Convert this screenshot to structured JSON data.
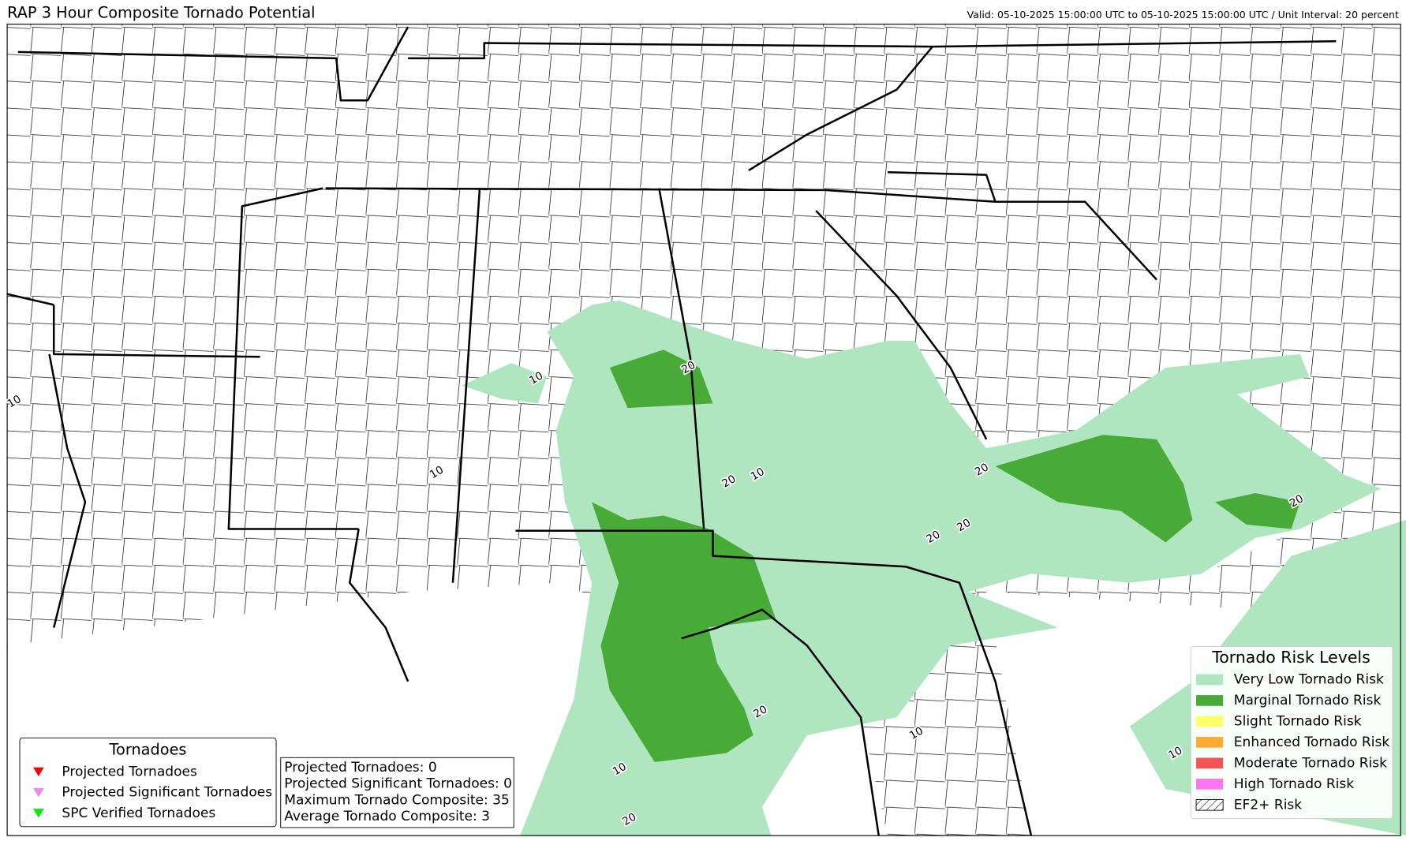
{
  "header": {
    "title": "RAP 3 Hour Composite Tornado Potential",
    "valid": "Valid: 05-10-2025 15:00:00 UTC to 05-10-2025 15:00:00 UTC / Unit Interval: 20 percent"
  },
  "risk_legend": {
    "title": "Tornado Risk Levels",
    "items": [
      {
        "label": "Very Low Tornado Risk",
        "color": "#b0e6bf"
      },
      {
        "label": "Marginal Tornado Risk",
        "color": "#48ab38"
      },
      {
        "label": "Slight Tornado Risk",
        "color": "#ffff66"
      },
      {
        "label": "Enhanced Tornado Risk",
        "color": "#ffaa33"
      },
      {
        "label": "Moderate Tornado Risk",
        "color": "#f25555"
      },
      {
        "label": "High Tornado Risk",
        "color": "#ff77ee"
      },
      {
        "label": "EF2+ Risk",
        "hatch": true
      }
    ]
  },
  "tornado_legend": {
    "title": "Tornadoes",
    "items": [
      {
        "label": "Projected Tornadoes",
        "color": "#ff0000"
      },
      {
        "label": "Projected Significant Tornadoes",
        "color": "#ee88ee"
      },
      {
        "label": "SPC Verified Tornadoes",
        "color": "#00ee00"
      }
    ]
  },
  "stats": [
    "Projected Tornadoes: 0",
    "Projected Significant Tornadoes: 0",
    "Maximum Tornado Composite: 35",
    "Average Tornado Composite: 3"
  ],
  "contour_labels": [
    "10",
    "10",
    "10",
    "20",
    "10",
    "20",
    "20",
    "20",
    "20",
    "20",
    "20",
    "10",
    "10",
    "20",
    "10"
  ]
}
